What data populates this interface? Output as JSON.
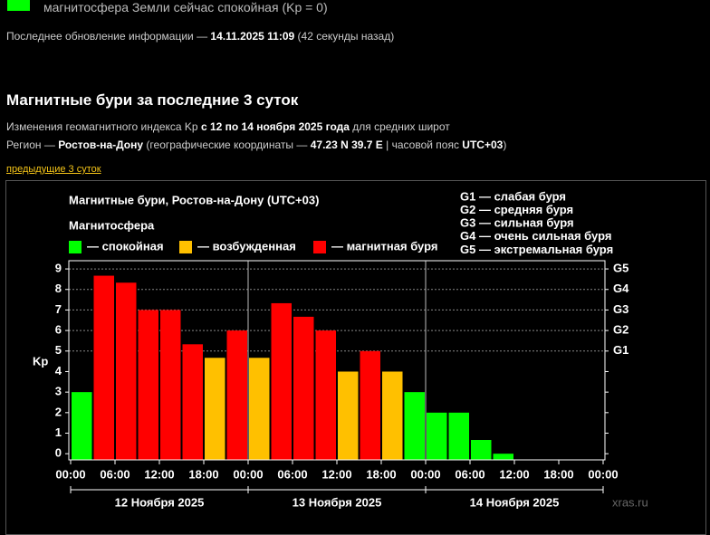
{
  "status": {
    "color": "#00ff00",
    "text": "магнитосфера Земли сейчас спокойная (Kp = 0)"
  },
  "update": {
    "prefix": "Последнее обновление информации —",
    "time": "14.11.2025 11:09",
    "suffix": "(42 секунды назад)"
  },
  "section": {
    "title": "Магнитные бури за последние 3 суток",
    "line1": {
      "a": "Изменения геомагнитного индекса Kp",
      "b": "с 12 по 14 ноября 2025 года",
      "c": "для средних широт"
    },
    "line2": {
      "a": "Регион —",
      "b": "Ростов-на-Дону",
      "c": "(географические координаты —",
      "d": "47.23 N 39.7 E",
      "e": "| часовой пояс",
      "f": "UTC+03",
      "g": ")"
    },
    "link": "предыдущие 3 суток"
  },
  "chart_data": {
    "type": "bar",
    "title": "Магнитные бури, Ростов-на-Дону (UTC+03)",
    "subtitle": "Магнитосфера",
    "legend": [
      {
        "name": "— спокойная",
        "color": "#00ff00"
      },
      {
        "name": "— возбужденная",
        "color": "#ffc000"
      },
      {
        "name": "— магнитная буря",
        "color": "#ff0000"
      }
    ],
    "scale_legend": [
      "G1 — слабая буря",
      "G2 — средняя буря",
      "G3 — сильная буря",
      "G4 — очень сильная буря",
      "G5 — экстремальная буря"
    ],
    "y_label": "Kp",
    "x": [
      0,
      3,
      6,
      9,
      12,
      15,
      18,
      21,
      24,
      27,
      30,
      33,
      36,
      39,
      42,
      45,
      48,
      51,
      54,
      57,
      60,
      63,
      66,
      69
    ],
    "values": [
      3,
      8.67,
      8.33,
      7,
      7,
      5.33,
      4.67,
      6,
      4.67,
      7.33,
      6.67,
      6,
      4,
      5,
      4,
      3,
      2,
      2,
      0.67,
      0,
      null,
      null,
      null,
      null
    ],
    "colors": [
      "#00ff00",
      "#ff0000",
      "#ff0000",
      "#ff0000",
      "#ff0000",
      "#ff0000",
      "#ffc000",
      "#ff0000",
      "#ffc000",
      "#ff0000",
      "#ff0000",
      "#ff0000",
      "#ffc000",
      "#ff0000",
      "#ffc000",
      "#00ff00",
      "#00ff00",
      "#00ff00",
      "#00ff00",
      "#00ff00",
      null,
      null,
      null,
      null
    ],
    "xlim": [
      0,
      72
    ],
    "xticks": [
      {
        "value": 0,
        "label": "00:00"
      },
      {
        "value": 6,
        "label": "06:00"
      },
      {
        "value": 12,
        "label": "12:00"
      },
      {
        "value": 18,
        "label": "18:00"
      },
      {
        "value": 24,
        "label": "00:00"
      },
      {
        "value": 30,
        "label": "06:00"
      },
      {
        "value": 36,
        "label": "12:00"
      },
      {
        "value": 42,
        "label": "18:00"
      },
      {
        "value": 48,
        "label": "00:00"
      },
      {
        "value": 54,
        "label": "06:00"
      },
      {
        "value": 60,
        "label": "12:00"
      },
      {
        "value": 66,
        "label": "18:00"
      },
      {
        "value": 72,
        "label": "00:00"
      }
    ],
    "days": [
      "12 Ноября 2025",
      "13 Ноября 2025",
      "14 Ноября 2025"
    ],
    "ylim": [
      -0.3,
      9.4
    ],
    "yticks": [
      0,
      1,
      2,
      3,
      4,
      5,
      6,
      7,
      8,
      9
    ],
    "y2lim": [
      -0.3,
      9.4
    ],
    "y2ticks": [
      {
        "value": 5,
        "label": "G1"
      },
      {
        "value": 6,
        "label": "G2"
      },
      {
        "value": 7,
        "label": "G3"
      },
      {
        "value": 8,
        "label": "G4"
      },
      {
        "value": 9,
        "label": "G5"
      }
    ],
    "grid": true,
    "watermark": "xras.ru"
  }
}
